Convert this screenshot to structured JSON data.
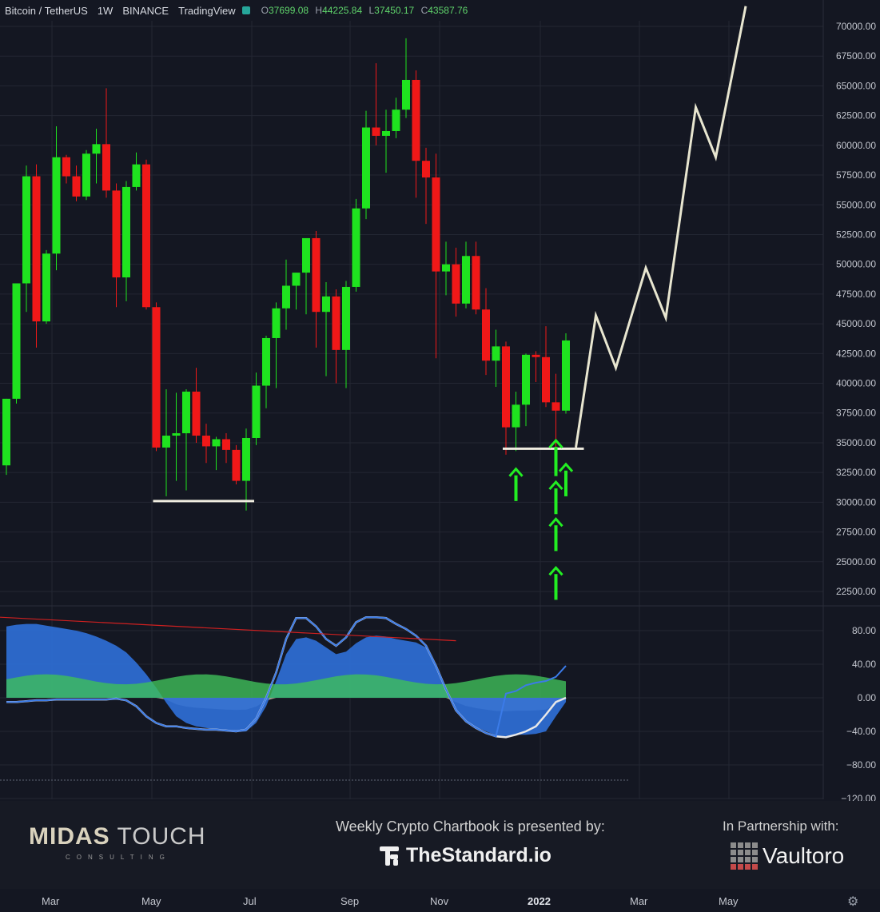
{
  "header": {
    "symbol": "Bitcoin / TetherUS",
    "interval": "1W",
    "exchange": "BINANCE",
    "platform": "TradingView",
    "open_label": "O",
    "open": "37699.08",
    "high_label": "H",
    "high": "44225.84",
    "low_label": "L",
    "low": "37450.17",
    "close_label": "C",
    "close": "43587.76"
  },
  "colors": {
    "bull": "#1fe31f",
    "bear": "#f01818",
    "background": "#141722",
    "projection": "#e8e6d0",
    "arrow": "#22ee22"
  },
  "chart_data": [
    {
      "type": "candlestick",
      "ylim": [
        20500,
        71500
      ],
      "price_ticks": [
        "70000.00",
        "67500.00",
        "65000.00",
        "62500.00",
        "60000.00",
        "57500.00",
        "55000.00",
        "52500.00",
        "50000.00",
        "47500.00",
        "45000.00",
        "42500.00",
        "40000.00",
        "37500.00",
        "35000.00",
        "32500.00",
        "30000.00",
        "27500.00",
        "25000.00",
        "22500.00"
      ],
      "x_ticks": [
        "Mar",
        "May",
        "Jul",
        "Sep",
        "Nov",
        "2022",
        "Mar",
        "May"
      ],
      "candles": [
        {
          "o": 33100,
          "h": 38700,
          "l": 32300,
          "c": 38700
        },
        {
          "o": 38700,
          "h": 48200,
          "l": 38300,
          "c": 48400
        },
        {
          "o": 48400,
          "h": 58300,
          "l": 46000,
          "c": 57400
        },
        {
          "o": 57400,
          "h": 58400,
          "l": 43000,
          "c": 45200
        },
        {
          "o": 45200,
          "h": 51200,
          "l": 45000,
          "c": 50900
        },
        {
          "o": 50900,
          "h": 61600,
          "l": 49500,
          "c": 59000
        },
        {
          "o": 59000,
          "h": 59200,
          "l": 56800,
          "c": 57400
        },
        {
          "o": 57400,
          "h": 58300,
          "l": 55300,
          "c": 55700
        },
        {
          "o": 55700,
          "h": 59600,
          "l": 55400,
          "c": 59300
        },
        {
          "o": 59300,
          "h": 61400,
          "l": 56800,
          "c": 60100
        },
        {
          "o": 60100,
          "h": 64800,
          "l": 55600,
          "c": 56200
        },
        {
          "o": 56200,
          "h": 56800,
          "l": 46400,
          "c": 48900
        },
        {
          "o": 48900,
          "h": 57000,
          "l": 46900,
          "c": 56500
        },
        {
          "o": 56500,
          "h": 59400,
          "l": 56200,
          "c": 58400
        },
        {
          "o": 58400,
          "h": 58800,
          "l": 46200,
          "c": 46400
        },
        {
          "o": 46400,
          "h": 46800,
          "l": 34300,
          "c": 34600
        },
        {
          "o": 34600,
          "h": 39500,
          "l": 30500,
          "c": 35600
        },
        {
          "o": 35600,
          "h": 39200,
          "l": 31800,
          "c": 35800
        },
        {
          "o": 35800,
          "h": 39500,
          "l": 31000,
          "c": 39300
        },
        {
          "o": 39300,
          "h": 41300,
          "l": 35000,
          "c": 35600
        },
        {
          "o": 35600,
          "h": 36600,
          "l": 33300,
          "c": 34700
        },
        {
          "o": 34700,
          "h": 35500,
          "l": 32700,
          "c": 35300
        },
        {
          "o": 35300,
          "h": 35800,
          "l": 33300,
          "c": 34400
        },
        {
          "o": 34400,
          "h": 34800,
          "l": 31500,
          "c": 31800
        },
        {
          "o": 31800,
          "h": 36200,
          "l": 29300,
          "c": 35400
        },
        {
          "o": 35400,
          "h": 40900,
          "l": 34800,
          "c": 39800
        },
        {
          "o": 39800,
          "h": 44000,
          "l": 37900,
          "c": 43800
        },
        {
          "o": 43800,
          "h": 46800,
          "l": 39600,
          "c": 46300
        },
        {
          "o": 46300,
          "h": 50400,
          "l": 44500,
          "c": 48200
        },
        {
          "o": 48200,
          "h": 49300,
          "l": 46200,
          "c": 49300
        },
        {
          "o": 49300,
          "h": 52200,
          "l": 45800,
          "c": 52200
        },
        {
          "o": 52200,
          "h": 52800,
          "l": 43000,
          "c": 46000
        },
        {
          "o": 46000,
          "h": 48500,
          "l": 40600,
          "c": 47300
        },
        {
          "o": 47300,
          "h": 47900,
          "l": 40000,
          "c": 42800
        },
        {
          "o": 42800,
          "h": 48600,
          "l": 39600,
          "c": 48100
        },
        {
          "o": 48100,
          "h": 55500,
          "l": 47700,
          "c": 54700
        },
        {
          "o": 54700,
          "h": 62900,
          "l": 53800,
          "c": 61500
        },
        {
          "o": 61500,
          "h": 66900,
          "l": 60000,
          "c": 60800
        },
        {
          "o": 60800,
          "h": 63000,
          "l": 57700,
          "c": 61200
        },
        {
          "o": 61200,
          "h": 64000,
          "l": 60600,
          "c": 63000
        },
        {
          "o": 63000,
          "h": 69000,
          "l": 62300,
          "c": 65500
        },
        {
          "o": 65500,
          "h": 66300,
          "l": 55600,
          "c": 58700
        },
        {
          "o": 58700,
          "h": 59800,
          "l": 53400,
          "c": 57300
        },
        {
          "o": 57300,
          "h": 59300,
          "l": 42100,
          "c": 49400
        },
        {
          "o": 49400,
          "h": 51900,
          "l": 47400,
          "c": 50000
        },
        {
          "o": 50000,
          "h": 51400,
          "l": 45600,
          "c": 46700
        },
        {
          "o": 46700,
          "h": 51900,
          "l": 46300,
          "c": 50700
        },
        {
          "o": 50700,
          "h": 51900,
          "l": 45800,
          "c": 46200
        },
        {
          "o": 46200,
          "h": 48000,
          "l": 40700,
          "c": 41900
        },
        {
          "o": 41900,
          "h": 44500,
          "l": 39700,
          "c": 43100
        },
        {
          "o": 43100,
          "h": 43500,
          "l": 34000,
          "c": 36300
        },
        {
          "o": 36300,
          "h": 39300,
          "l": 34300,
          "c": 38200
        },
        {
          "o": 38200,
          "h": 42500,
          "l": 36400,
          "c": 42400
        },
        {
          "o": 42400,
          "h": 42700,
          "l": 40100,
          "c": 42200
        },
        {
          "o": 42200,
          "h": 44800,
          "l": 38000,
          "c": 38400
        },
        {
          "o": 38400,
          "h": 40800,
          "l": 34300,
          "c": 37700
        },
        {
          "o": 37700,
          "h": 44200,
          "l": 37450,
          "c": 43600
        }
      ],
      "support_lines": [
        {
          "from_index": 15,
          "to_index": 24,
          "price": 30100
        },
        {
          "from_index": 50,
          "to_index": 57,
          "price": 34500
        }
      ],
      "projection": [
        {
          "i": 57,
          "p": 34600
        },
        {
          "i": 59,
          "p": 45700
        },
        {
          "i": 61,
          "p": 41300
        },
        {
          "i": 64,
          "p": 49700
        },
        {
          "i": 66,
          "p": 45500
        },
        {
          "i": 69,
          "p": 63200
        },
        {
          "i": 71,
          "p": 59000
        },
        {
          "i": 74,
          "p": 71700
        }
      ],
      "arrows": [
        {
          "index": 51,
          "from": 30100,
          "to": 32800
        },
        {
          "index": 55,
          "from": 32200,
          "to": 35200
        },
        {
          "index": 56,
          "from": 30500,
          "to": 33200
        },
        {
          "index": 55,
          "from": 29000,
          "to": 31700
        },
        {
          "index": 55,
          "from": 25900,
          "to": 28600
        },
        {
          "index": 55,
          "from": 21800,
          "to": 24500
        }
      ]
    },
    {
      "type": "area",
      "name": "oscillator",
      "ylim": [
        -120,
        120
      ],
      "y_ticks": [
        "80.00",
        "40.00",
        "0.00",
        "−40.00",
        "−80.00",
        "−120.00"
      ],
      "wave": [
        85,
        87,
        88,
        88,
        86,
        84,
        82,
        80,
        77,
        73,
        68,
        62,
        54,
        42,
        28,
        12,
        -6,
        -22,
        -30,
        -34,
        -36,
        -38,
        -40,
        -41,
        -40,
        -30,
        -10,
        20,
        52,
        70,
        72,
        68,
        60,
        52,
        55,
        65,
        72,
        74,
        73,
        70,
        68,
        66,
        60,
        40,
        10,
        -15,
        -28,
        -35,
        -40,
        -45,
        -46,
        -44,
        -44,
        -43,
        -40,
        -22,
        -5
      ],
      "fast": [
        -5,
        -5,
        -4,
        -3,
        -3,
        -2,
        -2,
        -2,
        -2,
        -2,
        -2,
        -1,
        -3,
        -10,
        -22,
        -30,
        -34,
        -34,
        -36,
        -37,
        -38,
        -38,
        -39,
        -40,
        -38,
        -25,
        0,
        30,
        70,
        95,
        95,
        85,
        70,
        62,
        72,
        90,
        96,
        96,
        95,
        88,
        82,
        74,
        62,
        38,
        10,
        -15,
        -28,
        -36,
        -42,
        -46,
        -47,
        -44,
        -40,
        -34,
        -20,
        -5,
        0
      ],
      "blue_line": [
        -5,
        -5,
        -4,
        -3,
        -3,
        -2,
        -2,
        -2,
        -2,
        -2,
        -2,
        -1,
        -3,
        -10,
        -22,
        -30,
        -34,
        -34,
        -36,
        -37,
        -38,
        -38,
        -39,
        -40,
        -38,
        -25,
        0,
        30,
        70,
        95,
        95,
        85,
        70,
        62,
        72,
        90,
        96,
        96,
        95,
        88,
        82,
        74,
        62,
        38,
        10,
        -15,
        -28,
        -36,
        -42,
        -46,
        5,
        8,
        15,
        18,
        20,
        25,
        38
      ]
    }
  ],
  "footer": {
    "brand_left_bold": "MIDAS",
    "brand_left_rest": " TOUCH",
    "brand_left_sub": "CONSULTING",
    "presented_by": "Weekly Crypto Chartbook is presented by:",
    "sponsor": "TheStandard.io",
    "partnership": "In Partnership with:",
    "partner": "Vaultoro"
  }
}
